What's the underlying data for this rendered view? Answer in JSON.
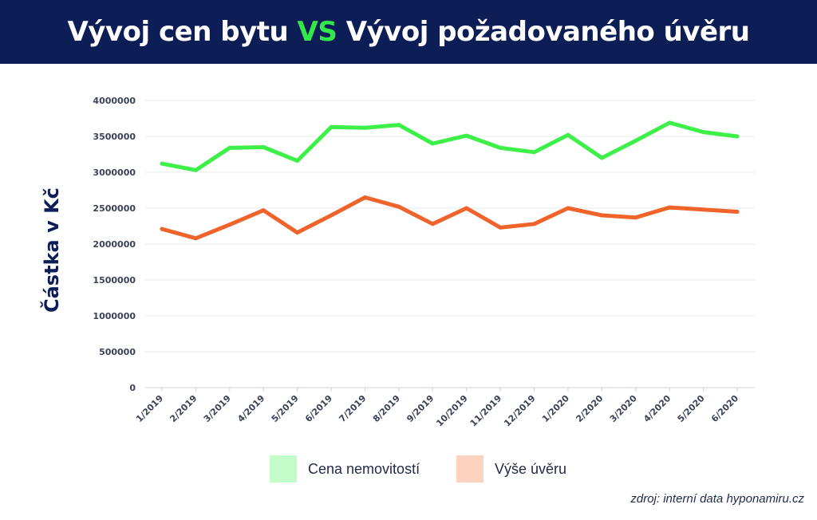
{
  "header": {
    "title_part1": "Vývoj cen bytu",
    "title_vs": "VS",
    "title_part2": "Vývoj požadovaného úvěru"
  },
  "colors": {
    "header_bg": "#0d1e57",
    "vs": "#33e84a",
    "series_price": "#3df048",
    "series_loan": "#f0632a",
    "legend_price": "#c2fcc9",
    "legend_loan": "#fdd3bf"
  },
  "chart_data": {
    "type": "line",
    "title": "Vývoj cen bytu VS Vývoj požadovaného úvěru",
    "xlabel": "",
    "ylabel": "Částka v Kč",
    "ylim": [
      0,
      4000000
    ],
    "yticks": [
      "0",
      "500000",
      "1000000",
      "1500000",
      "2000000",
      "2500000",
      "3000000",
      "3500000",
      "4000000"
    ],
    "ytick_values": [
      0,
      500000,
      1000000,
      1500000,
      2000000,
      2500000,
      3000000,
      3500000,
      4000000
    ],
    "categories": [
      "1/2019",
      "2/2019",
      "3/2019",
      "4/2019",
      "5/2019",
      "6/2019",
      "7/2019",
      "8/2019",
      "9/2019",
      "10/2019",
      "11/2019",
      "12/2019",
      "1/2020",
      "2/2020",
      "3/2020",
      "4/2020",
      "5/2020",
      "6/2020"
    ],
    "series": [
      {
        "name": "Cena nemovitostí",
        "values": [
          3120000,
          3030000,
          3340000,
          3350000,
          3160000,
          3630000,
          3620000,
          3660000,
          3400000,
          3510000,
          3340000,
          3280000,
          3520000,
          3200000,
          3440000,
          3690000,
          3560000,
          3500000
        ]
      },
      {
        "name": "Výše úvěru",
        "values": [
          2210000,
          2080000,
          2270000,
          2470000,
          2160000,
          2400000,
          2650000,
          2520000,
          2280000,
          2500000,
          2230000,
          2280000,
          2500000,
          2400000,
          2370000,
          2510000,
          2480000,
          2450000
        ]
      }
    ],
    "grid": true,
    "legend": "bottom"
  },
  "legend": {
    "price_label": "Cena nemovitostí",
    "loan_label": "Výše úvěru"
  },
  "source": "zdroj: interní data hyponamiru.cz"
}
